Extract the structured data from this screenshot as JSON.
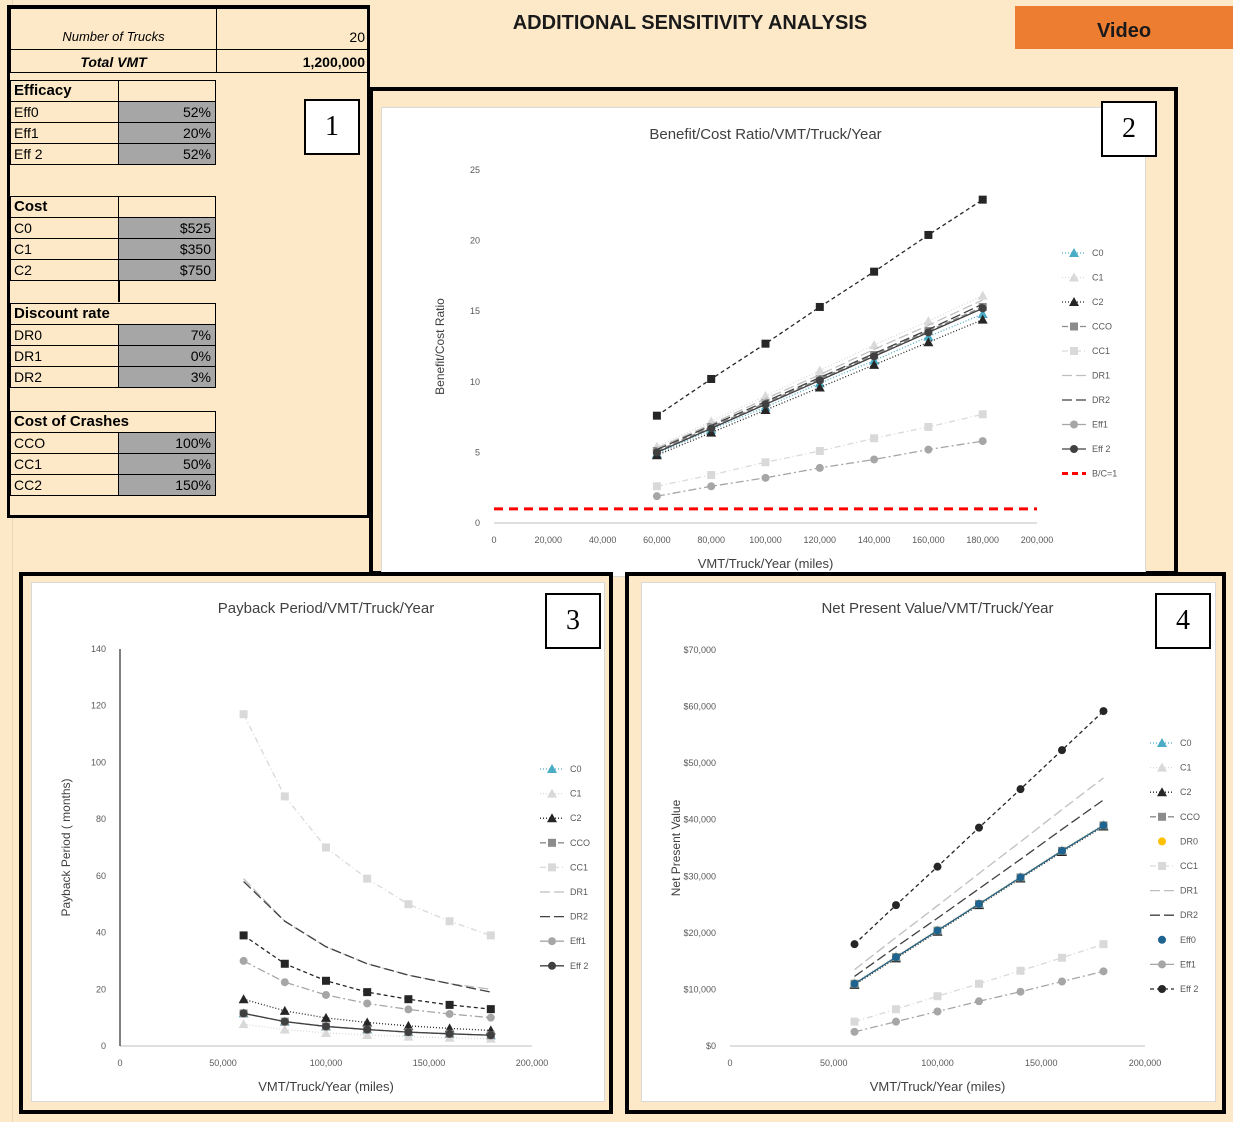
{
  "header": {
    "title": "ADDITIONAL SENSITIVITY ANALYSIS",
    "video_label": "Video"
  },
  "inputs": {
    "trucks_label": "Number of Trucks",
    "trucks_value": "20",
    "vmt_label": "Total VMT",
    "vmt_value": "1,200,000",
    "efficacy": {
      "title": "Efficacy",
      "rows": [
        {
          "label": "Eff0",
          "value": "52%"
        },
        {
          "label": "Eff1",
          "value": "20%"
        },
        {
          "label": "Eff 2",
          "value": "52%"
        }
      ]
    },
    "cost": {
      "title": "Cost",
      "rows": [
        {
          "label": "C0",
          "value": "$525"
        },
        {
          "label": "C1",
          "value": "$350"
        },
        {
          "label": "C2",
          "value": "$750"
        }
      ]
    },
    "discount": {
      "title": "Discount rate",
      "rows": [
        {
          "label": "DR0",
          "value": "7%"
        },
        {
          "label": "DR1",
          "value": "0%"
        },
        {
          "label": "DR2",
          "value": "3%"
        }
      ]
    },
    "crashes": {
      "title": "Cost of Crashes",
      "rows": [
        {
          "label": "CCO",
          "value": "100%"
        },
        {
          "label": "CC1",
          "value": "50%"
        },
        {
          "label": "CC2",
          "value": "150%"
        }
      ]
    }
  },
  "markers": {
    "n1": "1",
    "n2": "2",
    "n3": "3",
    "n4": "4"
  },
  "chart_data": [
    {
      "type": "line",
      "title": "Benefit/Cost Ratio/VMT/Truck/Year",
      "xlabel": "VMT/Truck/Year (miles)",
      "ylabel": "Benefit/Cost Ratio",
      "xlim": [
        0,
        200000
      ],
      "ylim": [
        0,
        25
      ],
      "xticks": [
        "0",
        "20,000",
        "40,000",
        "60,000",
        "80,000",
        "100,000",
        "120,000",
        "140,000",
        "160,000",
        "180,000",
        "200,000"
      ],
      "yticks": [
        "0",
        "5",
        "10",
        "15",
        "20",
        "25"
      ],
      "x": [
        60000,
        80000,
        100000,
        120000,
        140000,
        160000,
        180000
      ],
      "series": [
        {
          "name": "C0",
          "color": "#4bacc6",
          "marker": "triangle",
          "dash": "1,2",
          "values": [
            4.9,
            6.6,
            8.2,
            9.9,
            11.5,
            13.2,
            14.8
          ]
        },
        {
          "name": "C1",
          "color": "#d9d9d9",
          "marker": "triangle",
          "dash": "1,2",
          "values": [
            5.4,
            7.2,
            9.0,
            10.8,
            12.6,
            14.3,
            16.1
          ]
        },
        {
          "name": "C2",
          "color": "#262626",
          "marker": "triangle",
          "dash": "1,2",
          "values": [
            4.8,
            6.4,
            8.0,
            9.6,
            11.2,
            12.8,
            14.4
          ]
        },
        {
          "name": "CCO",
          "color": "#8c8c8c",
          "marker": "square",
          "dash": "6,3",
          "values": [
            5.1,
            6.8,
            8.5,
            10.2,
            11.9,
            13.6,
            15.3
          ]
        },
        {
          "name": "CC1",
          "color": "#d9d9d9",
          "marker": "square",
          "dash": "6,3,1,3",
          "values": [
            2.6,
            3.4,
            4.3,
            5.1,
            6.0,
            6.8,
            7.7
          ]
        },
        {
          "name": "DR1",
          "color": "#bfbfbf",
          "marker": "none",
          "dash": "10,4",
          "values": [
            5.3,
            7.0,
            8.8,
            10.5,
            12.3,
            14.0,
            15.8
          ]
        },
        {
          "name": "DR2",
          "color": "#404040",
          "marker": "none",
          "dash": "10,4",
          "values": [
            5.2,
            6.9,
            8.6,
            10.3,
            12.0,
            13.7,
            15.5
          ]
        },
        {
          "name": "Eff1",
          "color": "#a6a6a6",
          "marker": "circle",
          "dash": "8,3,2,3",
          "values": [
            1.9,
            2.6,
            3.2,
            3.9,
            4.5,
            5.2,
            5.8
          ]
        },
        {
          "name": "Eff 2",
          "color": "#404040",
          "marker": "circle",
          "dash": "none",
          "values": [
            5.0,
            6.7,
            8.4,
            10.1,
            11.8,
            13.5,
            15.2
          ]
        },
        {
          "name": "Cost",
          "color": "#262626",
          "marker": "square",
          "dash": "4,3",
          "legend": false,
          "values": [
            7.6,
            10.2,
            12.7,
            15.3,
            17.8,
            20.4,
            22.9
          ]
        }
      ],
      "reference": {
        "name": "B/C=1",
        "value": 1,
        "color": "#ff0000"
      }
    },
    {
      "type": "line",
      "title": "Payback Period/VMT/Truck/Year",
      "xlabel": "VMT/Truck/Year (miles)",
      "ylabel": "Payback Period ( months)",
      "xlim": [
        0,
        200000
      ],
      "ylim": [
        0,
        140
      ],
      "xticks": [
        "0",
        "50,000",
        "100,000",
        "150,000",
        "200,000"
      ],
      "yticks": [
        "0",
        "20",
        "40",
        "60",
        "80",
        "100",
        "120",
        "140"
      ],
      "x": [
        60000,
        80000,
        100000,
        120000,
        140000,
        160000,
        180000
      ],
      "series": [
        {
          "name": "C0",
          "color": "#4bacc6",
          "marker": "triangle",
          "dash": "1,2",
          "values": [
            11.5,
            8.6,
            6.9,
            5.8,
            4.9,
            4.3,
            3.8
          ]
        },
        {
          "name": "C1",
          "color": "#d9d9d9",
          "marker": "triangle",
          "dash": "1,2",
          "values": [
            7.7,
            5.8,
            4.6,
            3.9,
            3.3,
            2.9,
            2.6
          ]
        },
        {
          "name": "C2",
          "color": "#262626",
          "marker": "triangle",
          "dash": "1,2",
          "values": [
            16.5,
            12.4,
            9.9,
            8.3,
            7.1,
            6.2,
            5.5
          ]
        },
        {
          "name": "CCO",
          "color": "#8c8c8c",
          "marker": "square",
          "dash": "6,3",
          "values": [
            11.5,
            8.6,
            6.9,
            5.8,
            4.9,
            4.3,
            3.8
          ]
        },
        {
          "name": "CC1",
          "color": "#d9d9d9",
          "marker": "square",
          "dash": "6,3,1,3",
          "values": [
            117,
            88,
            70,
            59,
            50,
            44,
            39
          ]
        },
        {
          "name": "DR1",
          "color": "#bfbfbf",
          "marker": "none",
          "dash": "10,4",
          "values": [
            59,
            44,
            35,
            29,
            25,
            22,
            20
          ]
        },
        {
          "name": "DR2",
          "color": "#404040",
          "marker": "none",
          "dash": "10,4",
          "values": [
            58,
            44,
            35,
            29,
            25,
            22,
            19
          ]
        },
        {
          "name": "Eff1",
          "color": "#a6a6a6",
          "marker": "circle",
          "dash": "8,3,2,3",
          "values": [
            30,
            22.5,
            18,
            15,
            12.9,
            11.3,
            10
          ]
        },
        {
          "name": "Eff 2",
          "color": "#404040",
          "marker": "circle",
          "dash": "none",
          "values": [
            11.5,
            8.6,
            6.9,
            5.8,
            4.9,
            4.3,
            3.8
          ]
        },
        {
          "name": "Cost",
          "color": "#262626",
          "marker": "square",
          "dash": "4,3",
          "legend": false,
          "values": [
            39,
            29,
            23,
            19,
            16.5,
            14.5,
            13
          ]
        }
      ]
    },
    {
      "type": "line",
      "title": "Net Present Value/VMT/Truck/Year",
      "xlabel": "VMT/Truck/Year (miles)",
      "ylabel": "Net Present Value",
      "xlim": [
        0,
        200000
      ],
      "ylim": [
        0,
        70000
      ],
      "xticks": [
        "0",
        "50,000",
        "100,000",
        "150,000",
        "200,000"
      ],
      "yticks": [
        "$0",
        "$10,000",
        "$20,000",
        "$30,000",
        "$40,000",
        "$50,000",
        "$60,000",
        "$70,000"
      ],
      "x": [
        60000,
        80000,
        100000,
        120000,
        140000,
        160000,
        180000
      ],
      "series": [
        {
          "name": "C0",
          "color": "#4bacc6",
          "marker": "triangle",
          "dash": "1,2",
          "values": [
            11000,
            15700,
            20400,
            25100,
            29800,
            34500,
            39000
          ]
        },
        {
          "name": "C1",
          "color": "#d9d9d9",
          "marker": "triangle",
          "dash": "1,2",
          "values": [
            11200,
            15900,
            20600,
            25300,
            30000,
            34700,
            39200
          ]
        },
        {
          "name": "C2",
          "color": "#262626",
          "marker": "triangle",
          "dash": "1,2",
          "values": [
            10800,
            15500,
            20200,
            24900,
            29600,
            34300,
            38800
          ]
        },
        {
          "name": "CCO",
          "color": "#8c8c8c",
          "marker": "square",
          "dash": "6,3",
          "values": [
            11000,
            15700,
            20400,
            25100,
            29800,
            34500,
            39000
          ]
        },
        {
          "name": "DR0",
          "color": "#ffc000",
          "marker": "circle",
          "dash": "none",
          "values": [
            11000,
            15700,
            20400,
            25100,
            29800,
            34500,
            39000
          ]
        },
        {
          "name": "CC1",
          "color": "#d9d9d9",
          "marker": "square",
          "dash": "6,3,1,3",
          "values": [
            4300,
            6500,
            8800,
            11000,
            13300,
            15600,
            18000
          ]
        },
        {
          "name": "DR1",
          "color": "#bfbfbf",
          "marker": "none",
          "dash": "10,4",
          "values": [
            13500,
            19200,
            24800,
            30500,
            36100,
            41800,
            47400
          ]
        },
        {
          "name": "DR2",
          "color": "#404040",
          "marker": "none",
          "dash": "10,4",
          "values": [
            12300,
            17500,
            22600,
            27800,
            33000,
            38300,
            43500
          ]
        },
        {
          "name": "Eff0",
          "color": "#1f6391",
          "marker": "circle",
          "dash": "none",
          "values": [
            11000,
            15700,
            20400,
            25100,
            29800,
            34500,
            39000
          ]
        },
        {
          "name": "Eff1",
          "color": "#a6a6a6",
          "marker": "circle",
          "dash": "8,3,2,3",
          "values": [
            2500,
            4300,
            6100,
            7900,
            9600,
            11400,
            13200
          ]
        },
        {
          "name": "Eff 2",
          "color": "#262626",
          "marker": "circle",
          "dash": "4,3",
          "values": [
            18000,
            24900,
            31700,
            38600,
            45400,
            52300,
            59200
          ]
        }
      ]
    }
  ]
}
